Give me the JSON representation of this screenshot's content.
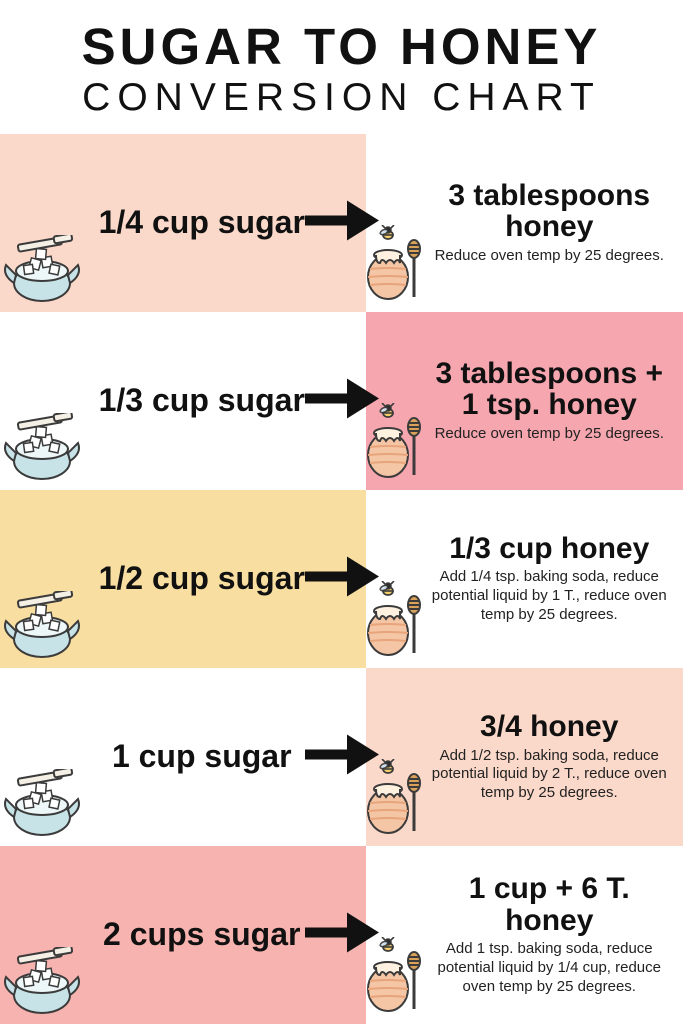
{
  "title": {
    "line1": "SUGAR TO HONEY",
    "line2": "CONVERSION CHART",
    "color": "#111111",
    "main_fontsize": 51,
    "sub_fontsize": 39
  },
  "palette": {
    "white": "#ffffff",
    "peach_light": "#fbd9ca",
    "pink": "#f6a6af",
    "yellow": "#f8dea0",
    "pink_mid": "#f7b3af",
    "sugar_bowl": "#c7e3e8",
    "sugar_outline": "#3b3b3b",
    "honey_pot": "#f5c6a5",
    "honey_pot_top": "#fff1e0",
    "honey_stripe": "#e8a47b",
    "arrow": "#111111"
  },
  "rows": [
    {
      "left_bg": "peach_light",
      "right_bg": "white",
      "sugar": "1/4 cup sugar",
      "honey": "3 tablespoons honey",
      "note": "Reduce oven temp by 25 degrees."
    },
    {
      "left_bg": "white",
      "right_bg": "pink",
      "sugar": "1/3 cup sugar",
      "honey": "3 tablespoons + 1 tsp. honey",
      "note": "Reduce oven temp by 25 degrees."
    },
    {
      "left_bg": "yellow",
      "right_bg": "white",
      "sugar": "1/2 cup sugar",
      "honey": "1/3 cup honey",
      "note": "Add 1/4 tsp. baking soda, reduce potential liquid by 1 T., reduce oven temp by 25 degrees."
    },
    {
      "left_bg": "white",
      "right_bg": "peach_light",
      "sugar": "1 cup sugar",
      "honey": "3/4 honey",
      "note": "Add 1/2 tsp. baking soda, reduce potential liquid by 2 T., reduce oven temp by 25 degrees."
    },
    {
      "left_bg": "pink_mid",
      "right_bg": "white",
      "sugar": "2 cups sugar",
      "honey": "1 cup + 6 T. honey",
      "note": "Add 1 tsp. baking soda, reduce potential liquid by 1/4 cup, reduce oven temp by 25 degrees."
    }
  ]
}
